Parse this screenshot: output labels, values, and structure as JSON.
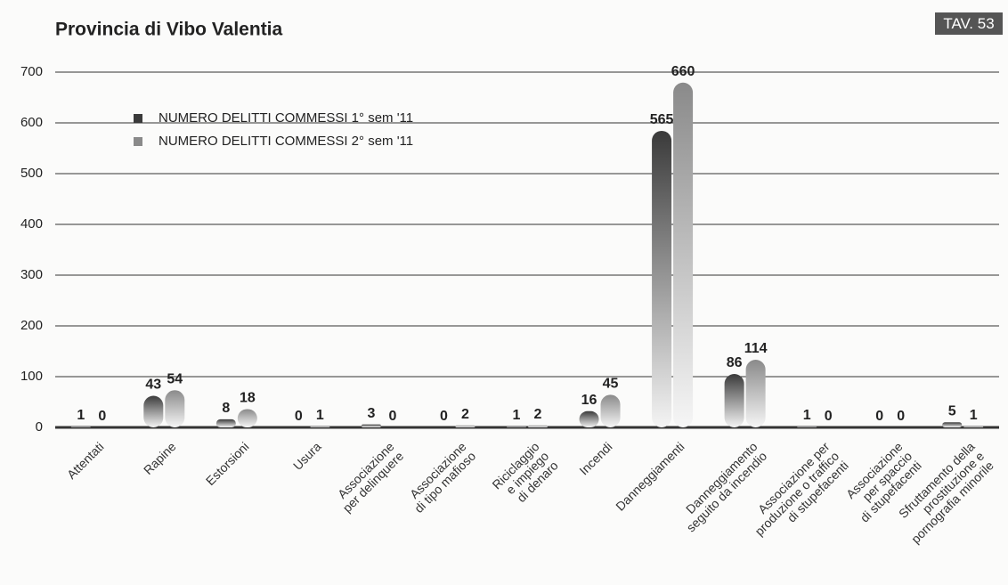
{
  "chart_data": {
    "type": "bar",
    "title": "Provincia di Vibo Valentia",
    "subtitle": "TAV. 53",
    "categories": [
      "Attentati",
      "Rapine",
      "Estorsioni",
      "Usura",
      "Associazione\nper delinquere",
      "Associazione\ndi tipo mafioso",
      "Riciclaggio\ne impiego\ndi denaro",
      "Incendi",
      "Danneggiamenti",
      "Danneggiamento\nseguito da incendio",
      "Associazione per\nproduzione o traffico\ndi stupefacenti",
      "Associazione\nper spaccio\ndi stupefacenti",
      "Sfruttamento della\nprostituzione e\npornografia minorile"
    ],
    "series": [
      {
        "name": "NUMERO DELITTI COMMESSI 1° sem '11",
        "color": "#3a3a3a",
        "values": [
          1,
          43,
          8,
          0,
          3,
          0,
          1,
          16,
          565,
          86,
          1,
          0,
          5
        ]
      },
      {
        "name": "NUMERO DELITTI COMMESSI 2° sem '11",
        "color": "#8a8a8a",
        "values": [
          0,
          54,
          18,
          1,
          0,
          2,
          2,
          45,
          660,
          114,
          0,
          0,
          1
        ]
      }
    ],
    "ylim": [
      0,
      700
    ],
    "yticks": [
      0,
      100,
      200,
      300,
      400,
      500,
      600,
      700
    ],
    "grid": true
  }
}
